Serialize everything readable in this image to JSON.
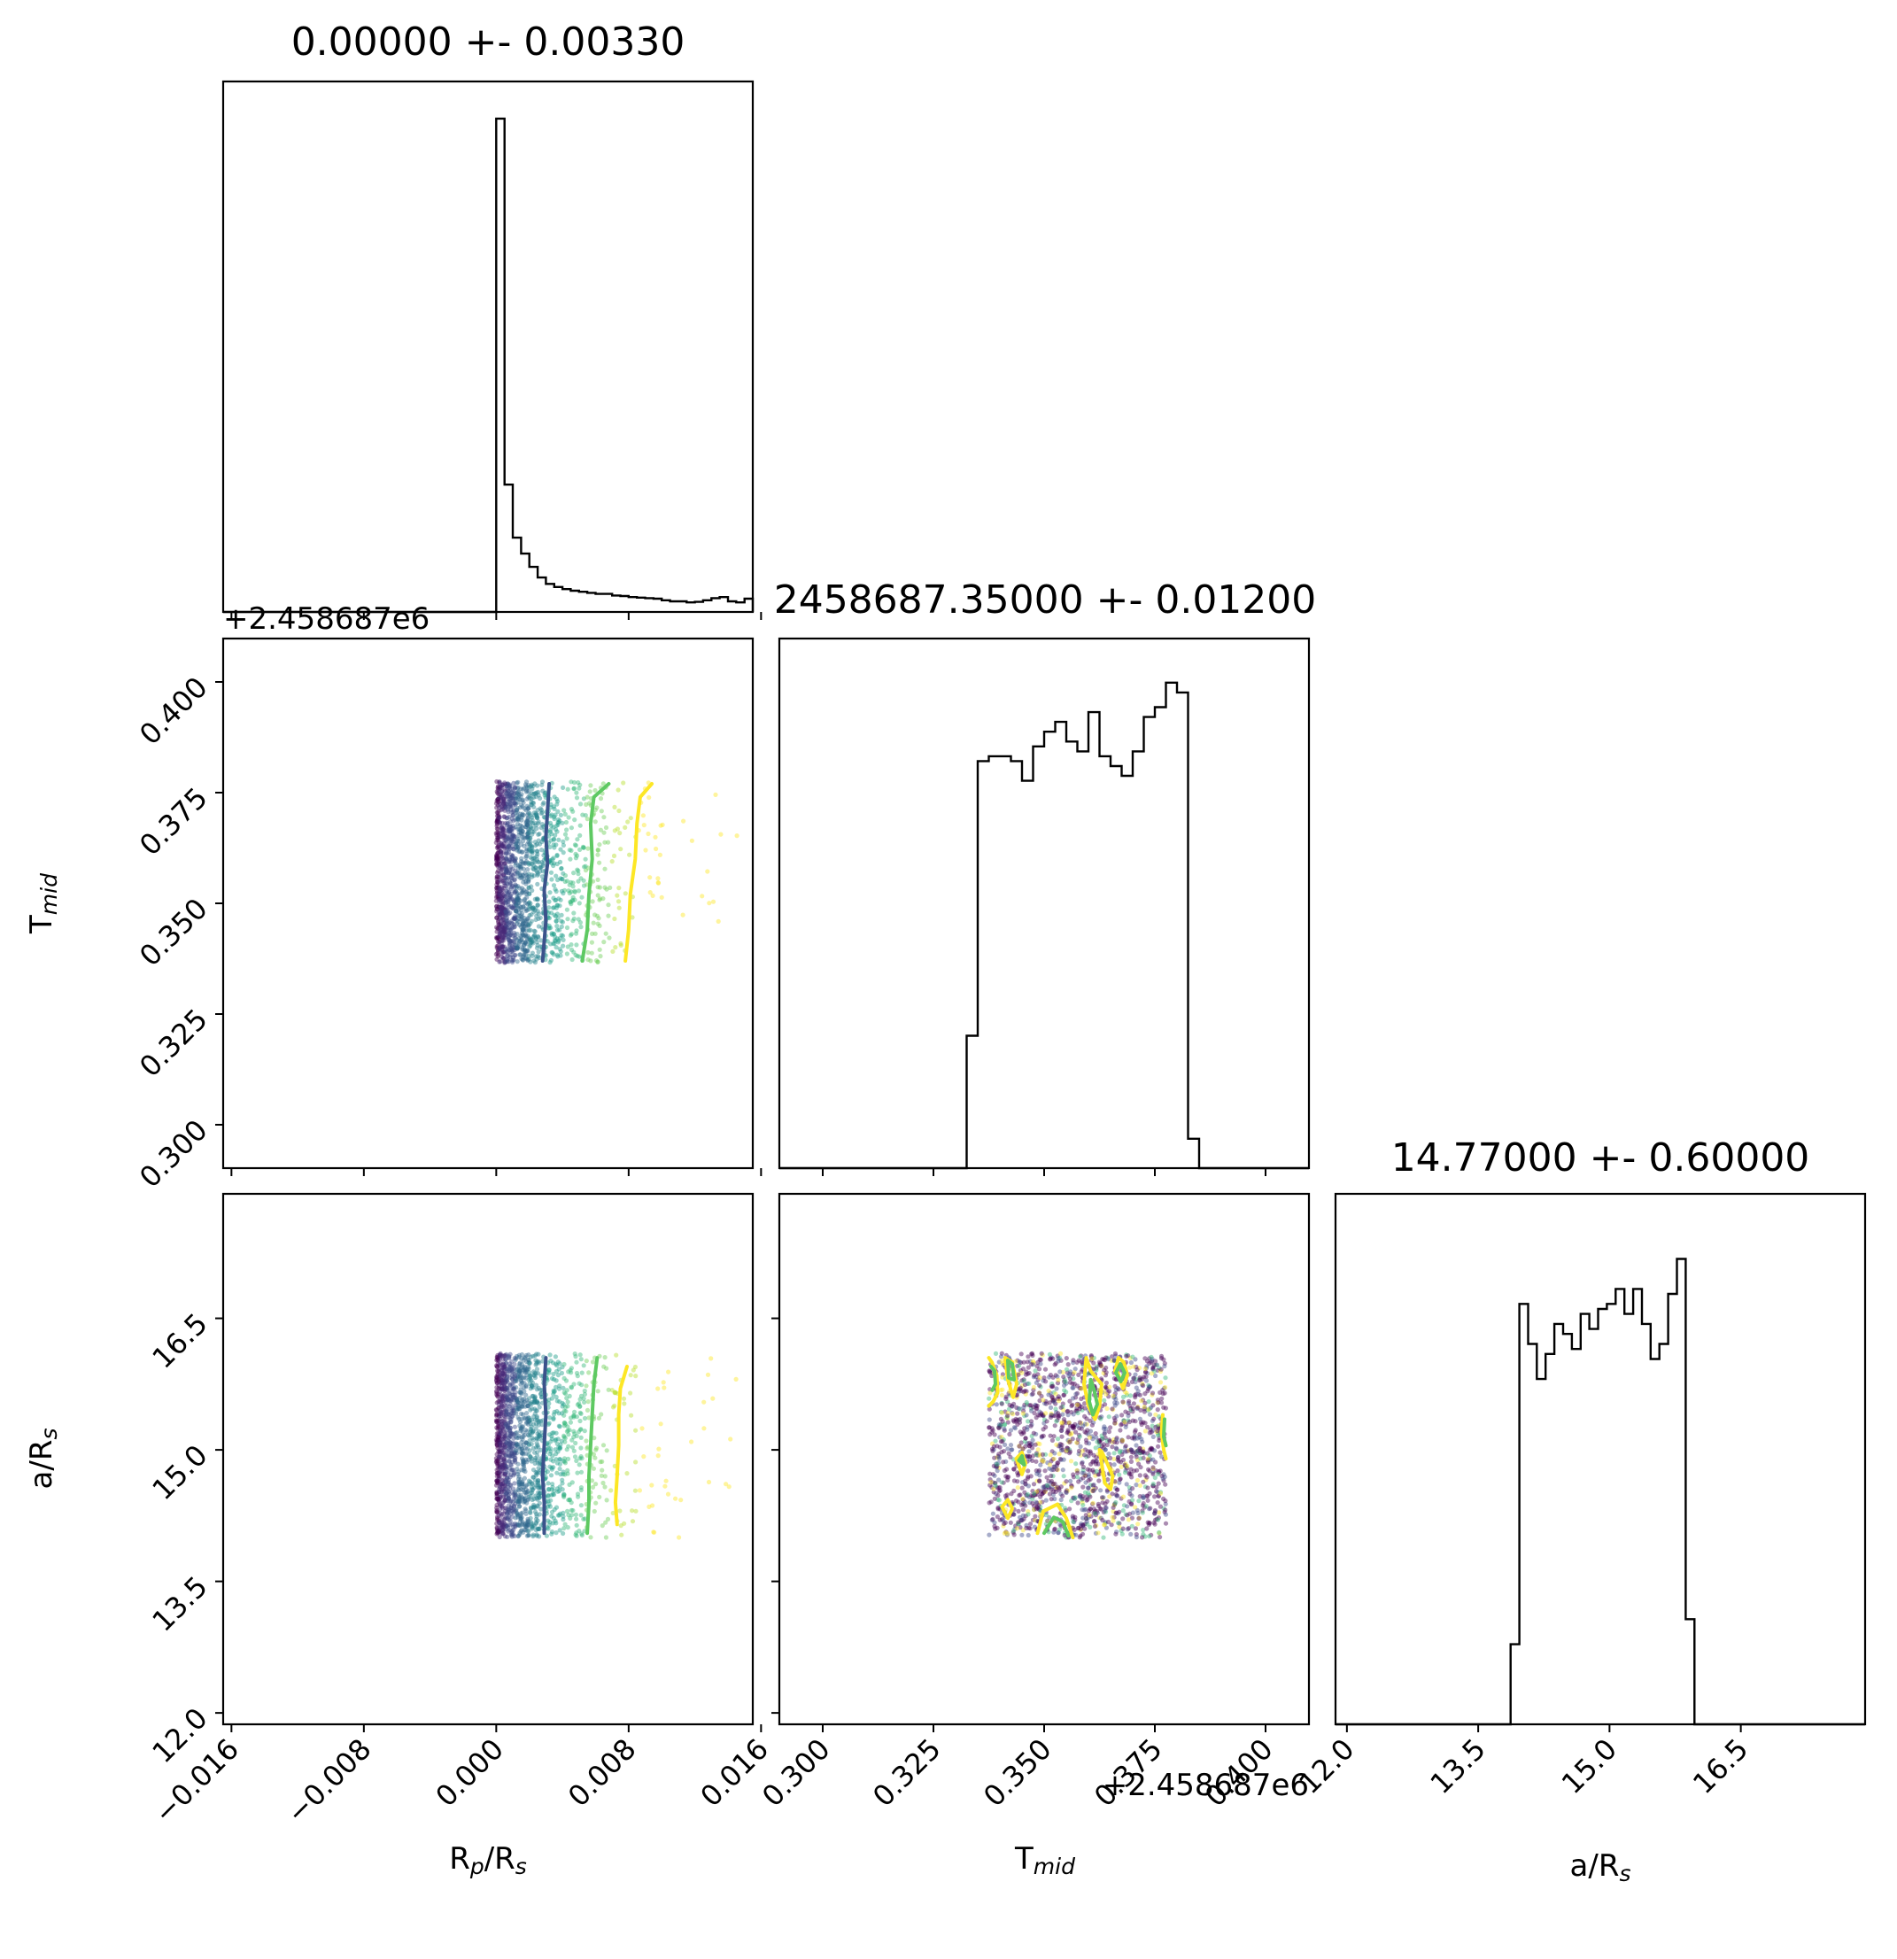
{
  "chart_data": {
    "type": "corner",
    "parameters": [
      {
        "key": "rp",
        "label": "R",
        "label_sub": "p",
        "label_tail": "/R",
        "label_sub2": "s",
        "title": "0.00000 +- 0.00330",
        "range": [
          -0.0165,
          0.0155
        ],
        "ticks": [
          -0.016,
          -0.008,
          0.0,
          0.008,
          0.016
        ],
        "tick_labels": [
          "−0.016",
          "−0.008",
          "0.000",
          "0.008",
          "0.016"
        ],
        "offset_text": "",
        "hist": {
          "bin_edges_start": 0.0,
          "bin_width": 0.0005,
          "counts": [
            0.93,
            0.24,
            0.14,
            0.11,
            0.085,
            0.065,
            0.053,
            0.047,
            0.043,
            0.04,
            0.038,
            0.036,
            0.034,
            0.034,
            0.031,
            0.03,
            0.028,
            0.027,
            0.026,
            0.025,
            0.022,
            0.02,
            0.02,
            0.018,
            0.019,
            0.022,
            0.026,
            0.028,
            0.02,
            0.018,
            0.025
          ],
          "ymax": 1.0
        }
      },
      {
        "key": "tmid",
        "label": "T",
        "label_sub": "mid",
        "label_tail": "",
        "label_sub2": "",
        "title": "2458687.35000 +- 0.01200",
        "range": [
          0.2902,
          0.4098
        ],
        "ticks": [
          0.3,
          0.325,
          0.35,
          0.375,
          0.4
        ],
        "tick_labels": [
          "0.300",
          "0.325",
          "0.350",
          "0.375",
          "0.400"
        ],
        "offset_text": "+2.458687e6",
        "hist": {
          "bin_edges_start": 0.3325,
          "bin_width": 0.0025,
          "counts": [
            0.27,
            0.83,
            0.84,
            0.84,
            0.83,
            0.79,
            0.86,
            0.89,
            0.91,
            0.87,
            0.85,
            0.93,
            0.84,
            0.82,
            0.8,
            0.85,
            0.92,
            0.94,
            0.99,
            0.97,
            0.06
          ],
          "ymax": 1.08
        }
      },
      {
        "key": "ars",
        "label": "a",
        "label_sub": "",
        "label_tail": "/R",
        "label_sub2": "s",
        "title": "14.77000 +- 0.60000",
        "range": [
          11.87,
          17.92
        ],
        "ticks": [
          12.0,
          13.5,
          15.0,
          16.5
        ],
        "tick_labels": [
          "12.0",
          "13.5",
          "15.0",
          "16.5"
        ],
        "offset_text": "",
        "hist": {
          "bin_edges_start": 13.87,
          "bin_width": 0.1,
          "counts": [
            0.16,
            0.84,
            0.76,
            0.69,
            0.74,
            0.8,
            0.78,
            0.75,
            0.82,
            0.79,
            0.83,
            0.84,
            0.87,
            0.82,
            0.87,
            0.8,
            0.73,
            0.76,
            0.86,
            0.93,
            0.21
          ],
          "ymax": 1.06
        }
      }
    ],
    "scatter_panels": [
      {
        "x": "rp",
        "y": "tmid",
        "x_range": [
          0.0,
          0.0155
        ],
        "y_range": [
          0.3365,
          0.3775
        ],
        "x_distribution": "exponential",
        "contours": [
          {
            "color": "#3b528b",
            "x": [
              0.0032,
              0.0031,
              0.003,
              0.0031,
              0.0029,
              0.003,
              0.0028
            ],
            "y": [
              0.377,
              0.371,
              0.365,
              0.359,
              0.353,
              0.346,
              0.337
            ]
          },
          {
            "color": "#5ec962",
            "x": [
              0.0068,
              0.0059,
              0.0057,
              0.0058,
              0.0056,
              0.0055,
              0.0052
            ],
            "y": [
              0.377,
              0.374,
              0.368,
              0.36,
              0.352,
              0.344,
              0.337
            ]
          },
          {
            "color": "#fde725",
            "x": [
              0.0094,
              0.0087,
              0.0085,
              0.0084,
              0.0081,
              0.008,
              0.0078
            ],
            "y": [
              0.377,
              0.374,
              0.368,
              0.36,
              0.352,
              0.344,
              0.337
            ]
          }
        ]
      },
      {
        "x": "rp",
        "y": "ars",
        "x_range": [
          0.0,
          0.0155
        ],
        "y_range": [
          14.0,
          16.1
        ],
        "x_distribution": "exponential",
        "contours": [
          {
            "color": "#3b528b",
            "x": [
              0.003,
              0.0029,
              0.003,
              0.0029,
              0.0028,
              0.0029,
              0.0029
            ],
            "y": [
              16.05,
              15.75,
              15.4,
              15.05,
              14.7,
              14.4,
              14.05
            ]
          },
          {
            "color": "#5ec962",
            "x": [
              0.0061,
              0.0059,
              0.0058,
              0.0057,
              0.0056,
              0.0056,
              0.0055
            ],
            "y": [
              16.05,
              15.75,
              15.4,
              15.05,
              14.7,
              14.4,
              14.05
            ]
          },
          {
            "color": "#fde725",
            "x": [
              0.0079,
              0.0075,
              0.0074,
              0.0074,
              0.0073,
              0.0072,
              0.0073
            ],
            "y": [
              15.95,
              15.7,
              15.4,
              15.05,
              14.7,
              14.4,
              14.15
            ]
          }
        ]
      },
      {
        "x": "tmid",
        "y": "ars",
        "x_range": [
          0.3375,
          0.3775
        ],
        "y_range": [
          14.0,
          16.1
        ],
        "x_distribution": "uniform",
        "contours": [
          {
            "color": "#fde725",
            "x": [
              0.3375,
              0.3382,
              0.3393,
              0.3395,
              0.3385,
              0.3375
            ],
            "y": [
              16.05,
              16.0,
              15.85,
              15.65,
              15.55,
              15.5
            ]
          },
          {
            "color": "#5ec962",
            "x": [
              0.338,
              0.3388,
              0.339,
              0.3383
            ],
            "y": [
              15.95,
              15.9,
              15.75,
              15.68
            ]
          },
          {
            "color": "#fde725",
            "x": [
              0.3412,
              0.3428,
              0.3438,
              0.343,
              0.3418,
              0.3412
            ],
            "y": [
              16.05,
              16.0,
              15.75,
              15.6,
              15.8,
              16.05
            ]
          },
          {
            "color": "#5ec962",
            "x": [
              0.3418,
              0.3428,
              0.3432,
              0.342,
              0.3418
            ],
            "y": [
              16.02,
              15.98,
              15.8,
              15.82,
              16.02
            ]
          },
          {
            "color": "#fde725",
            "x": [
              0.3595,
              0.359,
              0.36,
              0.3615,
              0.3625,
              0.363,
              0.3618,
              0.3605,
              0.3595
            ],
            "y": [
              16.05,
              15.75,
              15.5,
              15.35,
              15.5,
              15.75,
              15.82,
              15.9,
              16.05
            ]
          },
          {
            "color": "#5ec962",
            "x": [
              0.3605,
              0.3602,
              0.361,
              0.362,
              0.3612,
              0.3605
            ],
            "y": [
              15.8,
              15.55,
              15.4,
              15.52,
              15.7,
              15.8
            ]
          },
          {
            "color": "#fde725",
            "x": [
              0.366,
              0.3668,
              0.368,
              0.3688,
              0.3678,
              0.3665
            ],
            "y": [
              15.9,
              16.05,
              16.0,
              15.85,
              15.7,
              15.9
            ]
          },
          {
            "color": "#5ec962",
            "x": [
              0.3662,
              0.3672,
              0.3682,
              0.3673,
              0.3662
            ],
            "y": [
              15.88,
              15.98,
              15.88,
              15.78,
              15.88
            ]
          },
          {
            "color": "#fde725",
            "x": [
              0.3768,
              0.3765,
              0.377,
              0.3775
            ],
            "y": [
              15.4,
              15.2,
              15.0,
              14.9
            ]
          },
          {
            "color": "#5ec962",
            "x": [
              0.3772,
              0.377,
              0.3775
            ],
            "y": [
              15.35,
              15.15,
              15.05
            ]
          },
          {
            "color": "#fde725",
            "x": [
              0.3437,
              0.345,
              0.3458,
              0.345,
              0.3437
            ],
            "y": [
              14.9,
              14.97,
              14.85,
              14.72,
              14.9
            ]
          },
          {
            "color": "#5ec962",
            "x": [
              0.3443,
              0.345,
              0.3455,
              0.3443
            ],
            "y": [
              14.88,
              14.93,
              14.83,
              14.88
            ]
          },
          {
            "color": "#fde725",
            "x": [
              0.3625,
              0.3637,
              0.365,
              0.3655,
              0.3642,
              0.363,
              0.3625
            ],
            "y": [
              15.0,
              14.62,
              14.55,
              14.7,
              14.85,
              14.98,
              15.0
            ]
          },
          {
            "color": "#fde725",
            "x": [
              0.3405,
              0.3418,
              0.3428,
              0.3418,
              0.3405
            ],
            "y": [
              14.35,
              14.43,
              14.33,
              14.22,
              14.35
            ]
          },
          {
            "color": "#fde725",
            "x": [
              0.3485,
              0.3498,
              0.353,
              0.355,
              0.3565
            ],
            "y": [
              14.05,
              14.3,
              14.38,
              14.22,
              14.0
            ]
          },
          {
            "color": "#5ec962",
            "x": [
              0.35,
              0.3522,
              0.3542,
              0.3555
            ],
            "y": [
              14.05,
              14.23,
              14.18,
              14.02
            ]
          }
        ]
      }
    ]
  }
}
